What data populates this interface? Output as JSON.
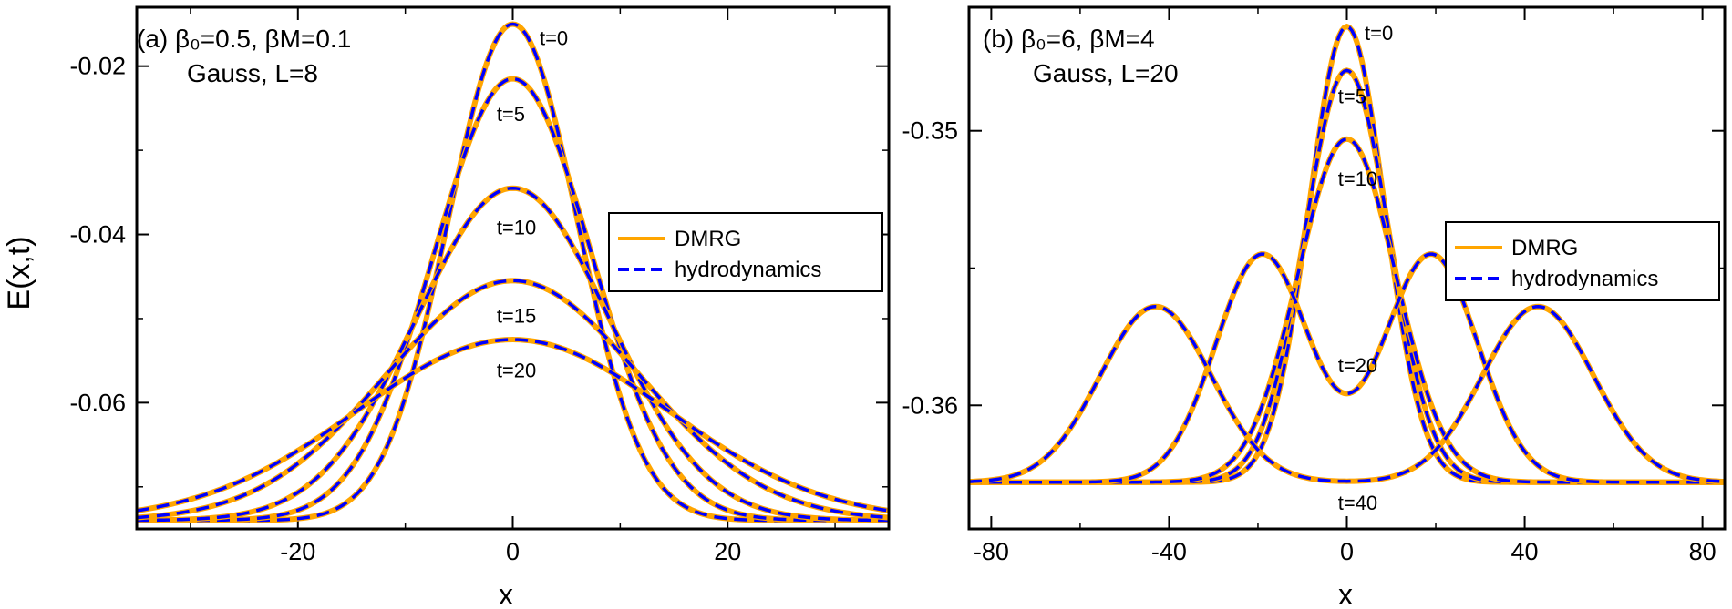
{
  "figure": {
    "ylabel": "E(x,t)",
    "xlabel": "x"
  },
  "colors": {
    "dmrg": "#ffa500",
    "hydro": "#0000ff",
    "axis": "#000000"
  },
  "chart_data": [
    {
      "type": "line",
      "panel_label": "(a)",
      "annotation_line1": "β₀=0.5, βM=0.1",
      "annotation_line2": "Gauss, L=8",
      "xlabel": "x",
      "ylabel": "E(x,t)",
      "xlim": [
        -35,
        35
      ],
      "ylim": [
        -0.075,
        -0.013
      ],
      "xticks": [
        -20,
        0,
        20
      ],
      "yticks": [
        -0.02,
        -0.04,
        -0.06
      ],
      "xtick_labels": [
        "-20",
        "0",
        "20"
      ],
      "ytick_labels": [
        "-0.02",
        "-0.04",
        "-0.06"
      ],
      "legend": {
        "position": "right",
        "entries": [
          "DMRG",
          "hydrodynamics"
        ]
      },
      "grid": false,
      "profile": "gaussian",
      "baseline": -0.074,
      "series": [
        {
          "t_label": "t=0",
          "peak": -0.015,
          "width": 6.0
        },
        {
          "t_label": "t=5",
          "peak": -0.0215,
          "width": 7.3
        },
        {
          "t_label": "t=10",
          "peak": -0.0345,
          "width": 9.0
        },
        {
          "t_label": "t=15",
          "peak": -0.0455,
          "width": 11.8
        },
        {
          "t_label": "t=20",
          "peak": -0.0525,
          "width": 14.5
        }
      ],
      "time_labels": [
        {
          "text": "t=0",
          "x": 2.5,
          "y": -0.0175
        },
        {
          "text": "t=5",
          "x": -1.5,
          "y": -0.0265
        },
        {
          "text": "t=10",
          "x": -1.5,
          "y": -0.04
        },
        {
          "text": "t=15",
          "x": -1.5,
          "y": -0.0505
        },
        {
          "text": "t=20",
          "x": -1.5,
          "y": -0.057
        }
      ]
    },
    {
      "type": "line",
      "panel_label": "(b)",
      "annotation_line1": "β₀=6, βM=4",
      "annotation_line2": "Gauss, L=20",
      "xlabel": "x",
      "ylabel": "",
      "xlim": [
        -85,
        85
      ],
      "ylim": [
        -0.3645,
        -0.3455
      ],
      "xticks": [
        -80,
        -40,
        0,
        40,
        80
      ],
      "yticks": [
        -0.35,
        -0.36
      ],
      "xtick_labels": [
        "-80",
        "-40",
        "0",
        "40",
        "80"
      ],
      "ytick_labels": [
        "-0.35",
        "-0.36"
      ],
      "legend": {
        "position": "right",
        "entries": [
          "DMRG",
          "hydrodynamics"
        ]
      },
      "grid": false,
      "profile": "split",
      "baseline": -0.3628,
      "series": [
        {
          "t_label": "t=0",
          "peak": -0.3462,
          "x0": 0,
          "width": 8.5
        },
        {
          "t_label": "t=5",
          "peak": -0.3478,
          "x0": 0,
          "width": 9.5
        },
        {
          "t_label": "t=10",
          "peak": -0.3503,
          "x0": 0,
          "width": 11.0
        },
        {
          "t_label": "t=20",
          "peak": -0.3545,
          "x0": 19,
          "width": 10.5
        },
        {
          "t_label": "t=40",
          "peak": -0.3564,
          "x0": 43,
          "width": 12.5
        }
      ],
      "time_labels": [
        {
          "text": "t=0",
          "x": 4,
          "y": -0.3467
        },
        {
          "text": "t=5",
          "x": -2,
          "y": -0.349
        },
        {
          "text": "t=10",
          "x": -2,
          "y": -0.352
        },
        {
          "text": "t=20",
          "x": -2,
          "y": -0.3588
        },
        {
          "text": "t=40",
          "x": -2,
          "y": -0.3638
        }
      ]
    }
  ]
}
